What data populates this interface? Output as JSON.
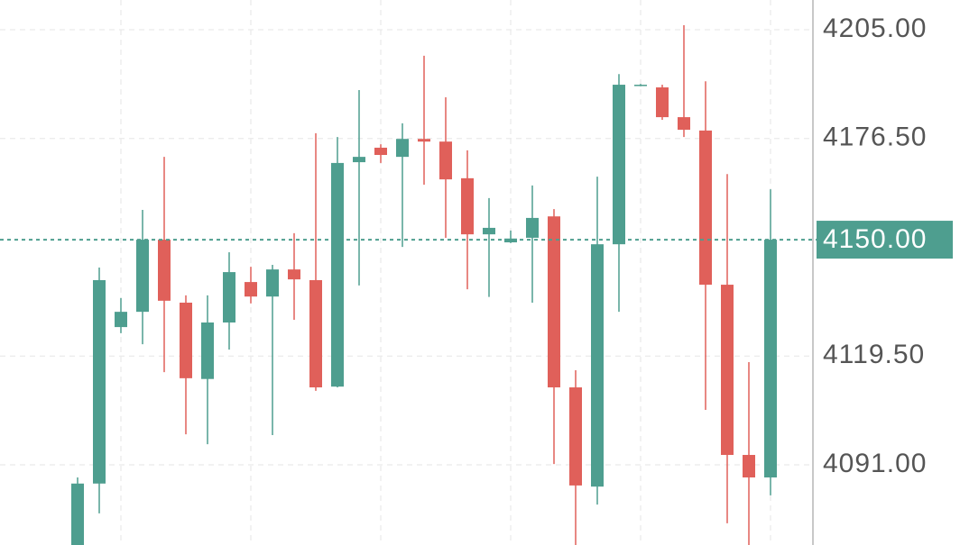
{
  "chart_data": {
    "type": "candlestick",
    "ylim": [
      4070,
      4212.8
    ],
    "yticks": [
      {
        "value": 4205,
        "label": "4205.00"
      },
      {
        "value": 4176.5,
        "label": "4176.50"
      },
      {
        "value": 4119.5,
        "label": "4119.50"
      },
      {
        "value": 4091,
        "label": "4091.00"
      }
    ],
    "grid": true,
    "up_color": "#4e9e8f",
    "down_color": "#e0605a",
    "last_price": {
      "value": 4150,
      "label": "4150.00"
    },
    "open": [
      4068,
      4086.1,
      4127.1,
      4131.1,
      4150,
      4133.5,
      4113.5,
      4128.3,
      4138.9,
      4135.1,
      4142.2,
      4139.4,
      4111.5,
      4170.3,
      4174.1,
      4171.7,
      4176.4,
      4175.7,
      4166.1,
      4151.4,
      4149.3,
      4150.5,
      4156.1,
      4111.3,
      4085.3,
      4148.8,
      4190.4,
      4189.9,
      4182.1,
      4178.6,
      4138.2,
      4093.6,
      4087.7
    ],
    "high": [
      4087.7,
      4142.7,
      4134.7,
      4157.8,
      4171.7,
      4135.4,
      4135.4,
      4146.7,
      4142.9,
      4143.4,
      4151.7,
      4177.9,
      4176.9,
      4189.2,
      4175.0,
      4180.5,
      4198.2,
      4187.3,
      4173.4,
      4160.9,
      4152.4,
      4164.2,
      4158.0,
      4115.8,
      4166.5,
      4193.4,
      4190.8,
      4190.6,
      4206.2,
      4191.5,
      4167.2,
      4117.9,
      4163.2
    ],
    "low": [
      4065,
      4078.3,
      4125.5,
      4122.6,
      4115.3,
      4099.0,
      4096.4,
      4121.2,
      4133.3,
      4098.8,
      4129.0,
      4110.4,
      4111.3,
      4138.0,
      4170.1,
      4148.1,
      4164.4,
      4150.5,
      4137.0,
      4135.0,
      4149.1,
      4133.5,
      4091.2,
      4069,
      4080.6,
      4131.1,
      4190.2,
      4181.4,
      4176.9,
      4105.4,
      4075.7,
      4069,
      4083
    ],
    "close": [
      4086.1,
      4139.4,
      4131.1,
      4150,
      4134,
      4113.7,
      4128.3,
      4141.5,
      4135.1,
      4142.2,
      4139.6,
      4111.3,
      4170.1,
      4171.7,
      4172.2,
      4176.4,
      4175.7,
      4165.8,
      4151.4,
      4153.1,
      4150.3,
      4155.7,
      4111.3,
      4085.6,
      4148.8,
      4190.6,
      4190.6,
      4182.1,
      4178.8,
      4138.2,
      4093.6,
      4087.7,
      4150
    ]
  }
}
